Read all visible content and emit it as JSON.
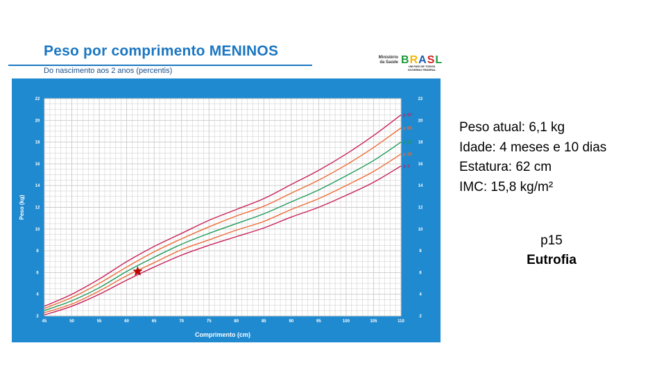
{
  "header": {
    "title": "Peso por comprimento MENINOS",
    "subtitle": "Do nascimento aos 2 anos (percentis)"
  },
  "logo": {
    "ministry": "Ministério\nda Saúde",
    "word": [
      "B",
      "R",
      "A",
      "S",
      "L"
    ],
    "slogan": "UM PAÍS DE TODOS\nGOVERNO FEDERAL"
  },
  "patient": {
    "lines": [
      "Peso atual: 6,1 kg",
      "Idade: 4 meses e 10 dias",
      "Estatura: 62 cm",
      "IMC: 15,8 kg/m²"
    ],
    "percentile": "p15",
    "classification": "Eutrofia"
  },
  "colors": {
    "panel": "#1f8ad0",
    "grid": "#c9c9c9",
    "p97": "#c8205a",
    "p85": "#ee6a35",
    "p50": "#1f9a5a",
    "p15": "#ee6a35",
    "p3": "#c8205a",
    "marker": "#c40000"
  },
  "chart_data": {
    "type": "line",
    "title": "Peso por comprimento MENINOS",
    "subtitle": "Do nascimento aos 2 anos (percentis)",
    "xlabel": "Comprimento (cm)",
    "ylabel": "Peso (kg)",
    "xlim": [
      45,
      110
    ],
    "ylim": [
      2,
      22
    ],
    "grid": true,
    "x_ticks": [
      "45",
      "50",
      "55",
      "60",
      "65",
      "70",
      "75",
      "80",
      "85",
      "90",
      "95",
      "100",
      "105",
      "110"
    ],
    "y_ticks": [
      "2",
      "4",
      "6",
      "8",
      "10",
      "12",
      "14",
      "16",
      "18",
      "20",
      "22"
    ],
    "x": [
      45,
      50,
      55,
      60,
      65,
      70,
      75,
      80,
      85,
      90,
      95,
      100,
      105,
      110
    ],
    "series": [
      {
        "name": "p 97",
        "color_key": "p97",
        "values": [
          2.9,
          4.0,
          5.4,
          7.0,
          8.4,
          9.6,
          10.8,
          11.8,
          12.8,
          14.1,
          15.4,
          16.9,
          18.6,
          20.5
        ]
      },
      {
        "name": "p 85",
        "color_key": "p85",
        "values": [
          2.7,
          3.7,
          5.0,
          6.5,
          7.9,
          9.1,
          10.2,
          11.2,
          12.1,
          13.3,
          14.5,
          15.9,
          17.5,
          19.3
        ]
      },
      {
        "name": "p 50",
        "color_key": "p50",
        "values": [
          2.5,
          3.4,
          4.6,
          6.1,
          7.4,
          8.6,
          9.6,
          10.5,
          11.4,
          12.5,
          13.6,
          14.9,
          16.3,
          18.0
        ]
      },
      {
        "name": "p 15",
        "color_key": "p15",
        "values": [
          2.3,
          3.1,
          4.3,
          5.7,
          6.9,
          8.1,
          9.0,
          9.9,
          10.7,
          11.8,
          12.8,
          14.0,
          15.3,
          16.9
        ]
      },
      {
        "name": "p 3",
        "color_key": "p3",
        "values": [
          2.1,
          2.9,
          4.0,
          5.3,
          6.5,
          7.6,
          8.5,
          9.3,
          10.1,
          11.1,
          12.0,
          13.1,
          14.3,
          15.8
        ]
      }
    ],
    "annotations": [
      {
        "type": "marker",
        "shape": "star",
        "x": 62,
        "y": 6.1
      }
    ]
  }
}
